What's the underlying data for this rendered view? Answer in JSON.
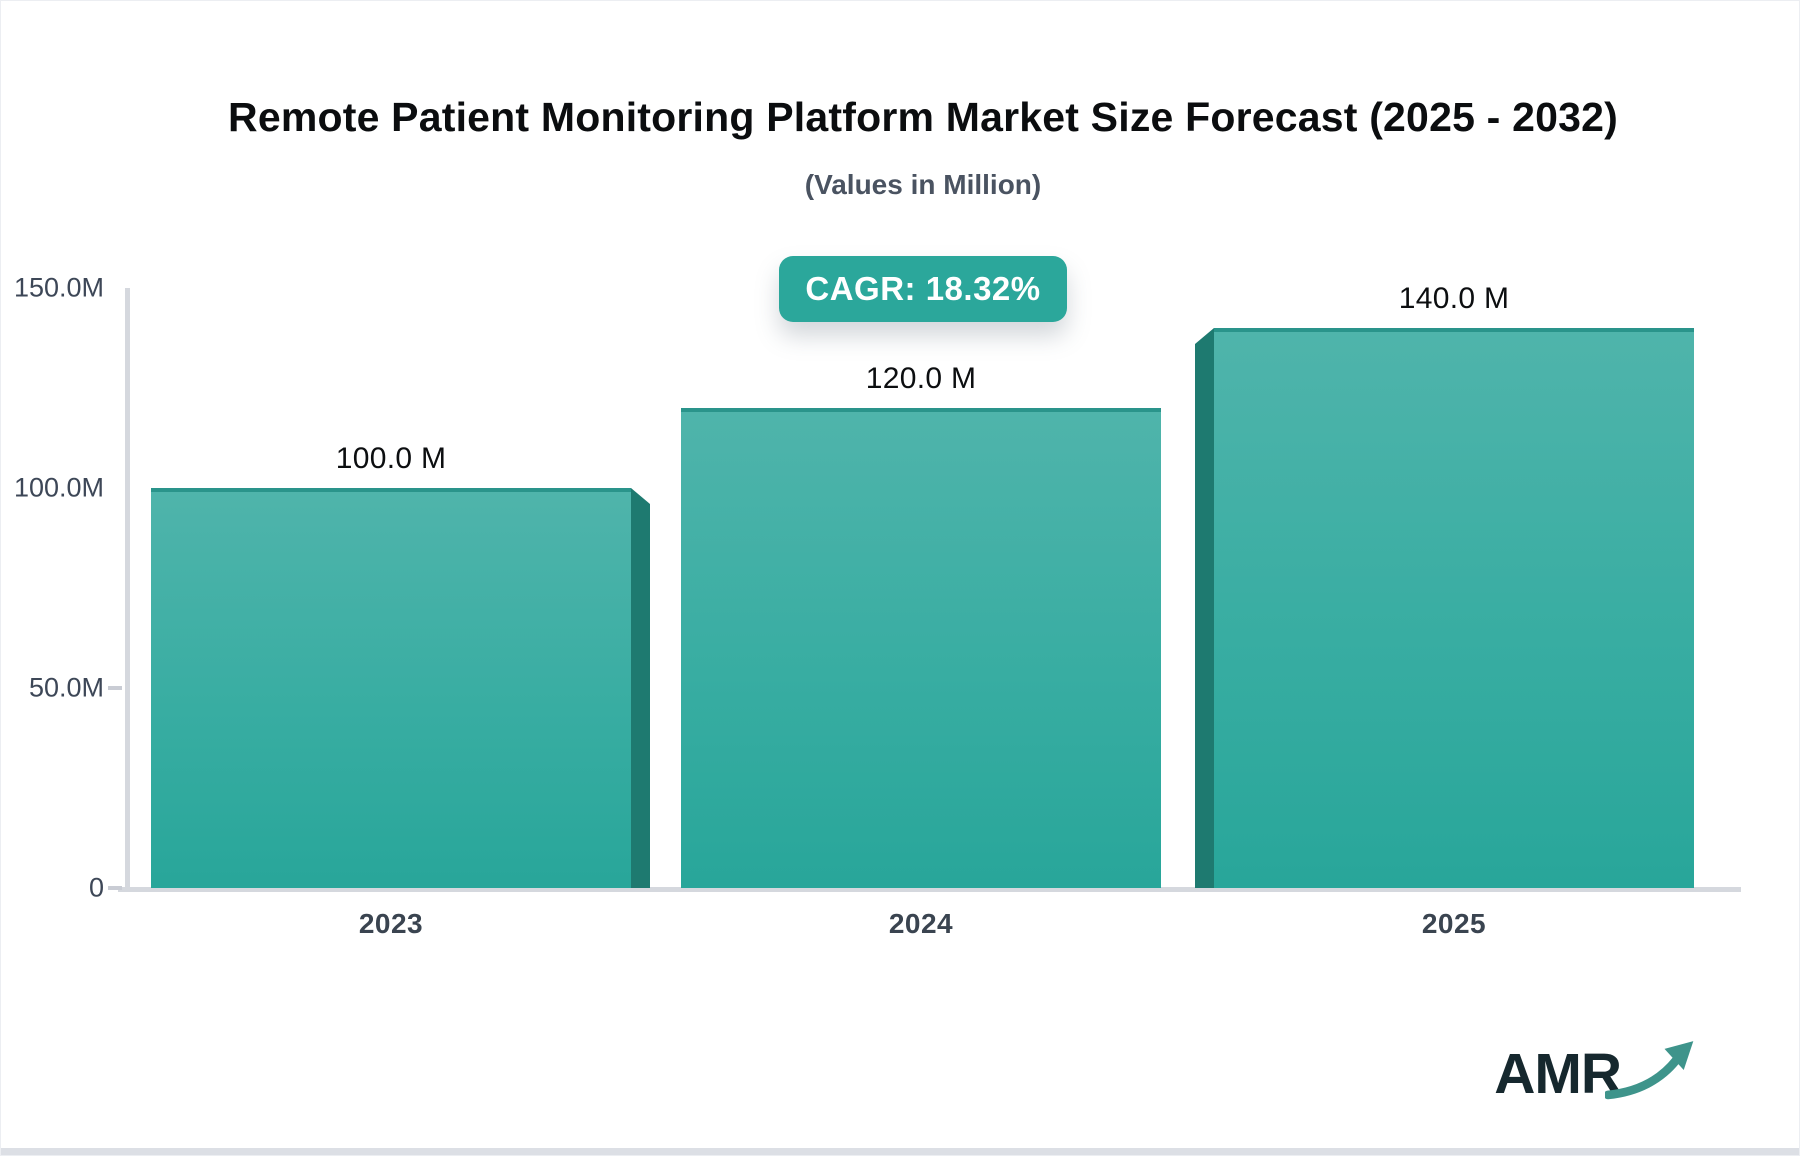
{
  "header": {
    "title": "Remote Patient Monitoring Platform Market Size Forecast (2025 - 2032)",
    "subtitle": "(Values in Million)",
    "cagr_badge": "CAGR: 18.32%"
  },
  "chart_data": {
    "type": "bar",
    "title": "Remote Patient Monitoring Platform Market Size Forecast (2025 - 2032)",
    "subtitle": "(Values in Million)",
    "unit": "Million",
    "categories": [
      "2023",
      "2024",
      "2025"
    ],
    "values": [
      100.0,
      120.0,
      140.0
    ],
    "bar_labels": [
      "100.0 M",
      "120.0 M",
      "140.0 M"
    ],
    "annotation": "CAGR: 18.32%",
    "xlabel": "",
    "ylabel": "",
    "ylim": [
      0,
      150
    ],
    "y_ticks": [
      {
        "label": "150.0M",
        "value": 150,
        "dash": false
      },
      {
        "label": "100.0M",
        "value": 100,
        "dash": false
      },
      {
        "label": "50.0M",
        "value": 50,
        "dash": true
      },
      {
        "label": "0",
        "value": 0,
        "dash": true
      }
    ],
    "grid": false,
    "legend": "none",
    "colors": {
      "bar_gradient_top": "#4fb4ab",
      "bar_gradient_bottom": "#28a69a",
      "bar_top_edge": "#2a948b",
      "bar_3d_side": "#1e7a70",
      "badge_background": "#2ba79b",
      "axis_line": "#d5d8de",
      "logo_arrow": "#3e948b"
    }
  },
  "branding": {
    "logo_text": "AMR"
  }
}
